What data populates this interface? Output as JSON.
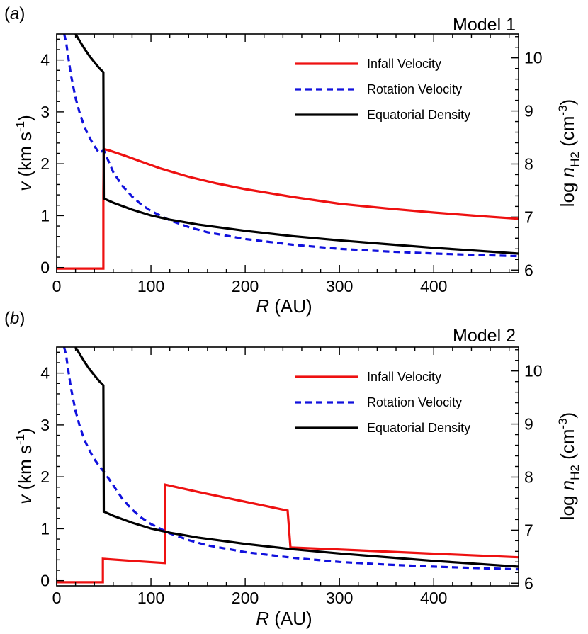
{
  "figure": {
    "x_label": {
      "symbol": "R",
      "unit": "(AU)"
    },
    "y_left_label": {
      "symbol": "v",
      "unit_open": "(km s",
      "unit_exp": "-1",
      "unit_close": ")"
    },
    "y_right_label": {
      "prefix": "log ",
      "symbol": "n",
      "subscript": "H2",
      "unit_open": "(cm",
      "unit_exp": "-3",
      "unit_close": ")"
    }
  },
  "chart_data": [
    {
      "type": "line",
      "panel_label": "a",
      "title": "Model 1",
      "xlabel": "R (AU)",
      "ylabel": "v (km s-1)",
      "ylabel_right": "log nH2 (cm-3)",
      "xlim": [
        0,
        490
      ],
      "ylim": [
        -0.1,
        4.5
      ],
      "ylim_right": [
        5.95,
        10.45
      ],
      "x_ticks": [
        0,
        100,
        200,
        300,
        400
      ],
      "y_ticks": [
        0,
        1,
        2,
        3,
        4
      ],
      "y_ticks_right": [
        6,
        7,
        8,
        9,
        10
      ],
      "legend": [
        "Infall Velocity",
        "Rotation Velocity",
        "Equatorial Density"
      ],
      "series": [
        {
          "name": "Infall Velocity",
          "axis": "left",
          "color": "#ee1111",
          "style": "solid",
          "x": [
            0,
            49.5,
            49.5,
            50,
            55,
            70,
            90,
            110,
            140,
            170,
            200,
            250,
            300,
            350,
            400,
            450,
            490
          ],
          "y": [
            -0.02,
            -0.02,
            1.45,
            2.28,
            2.26,
            2.17,
            2.04,
            1.91,
            1.75,
            1.62,
            1.51,
            1.36,
            1.23,
            1.14,
            1.06,
            0.99,
            0.94
          ]
        },
        {
          "name": "Rotation Velocity",
          "axis": "left",
          "color": "#1111dd",
          "style": "dashed",
          "x": [
            8,
            10,
            15,
            20,
            25,
            30,
            35,
            40,
            45,
            50,
            60,
            70,
            80,
            90,
            100,
            120,
            140,
            160,
            200,
            250,
            300,
            350,
            400,
            450,
            490
          ],
          "y": [
            4.5,
            4.34,
            3.72,
            3.27,
            2.94,
            2.69,
            2.5,
            2.34,
            2.21,
            2.26,
            1.84,
            1.57,
            1.37,
            1.21,
            1.09,
            0.91,
            0.78,
            0.68,
            0.55,
            0.44,
            0.36,
            0.31,
            0.27,
            0.24,
            0.22
          ]
        },
        {
          "name": "Equatorial Density",
          "axis": "right",
          "color": "#000000",
          "style": "solid",
          "x": [
            20,
            25,
            30,
            35,
            40,
            45,
            49.5,
            50,
            60,
            80,
            100,
            120,
            150,
            200,
            250,
            300,
            350,
            400,
            450,
            490
          ],
          "y": [
            10.45,
            10.3,
            10.16,
            10.03,
            9.92,
            9.81,
            9.73,
            7.35,
            7.27,
            7.14,
            7.03,
            6.95,
            6.86,
            6.74,
            6.64,
            6.56,
            6.49,
            6.42,
            6.36,
            6.31
          ]
        }
      ]
    },
    {
      "type": "line",
      "panel_label": "b",
      "title": "Model 2",
      "xlabel": "R (AU)",
      "ylabel": "v (km s-1)",
      "ylabel_right": "log nH2 (cm-3)",
      "xlim": [
        0,
        490
      ],
      "ylim": [
        -0.1,
        4.5
      ],
      "ylim_right": [
        5.95,
        10.45
      ],
      "x_ticks": [
        0,
        100,
        200,
        300,
        400
      ],
      "y_ticks": [
        0,
        1,
        2,
        3,
        4
      ],
      "y_ticks_right": [
        6,
        7,
        8,
        9,
        10
      ],
      "legend": [
        "Infall Velocity",
        "Rotation Velocity",
        "Equatorial Density"
      ],
      "series": [
        {
          "name": "Infall Velocity",
          "axis": "left",
          "color": "#ee1111",
          "style": "solid",
          "x": [
            0,
            49,
            49,
            80,
            115,
            115,
            150,
            200,
            245,
            248,
            300,
            400,
            490
          ],
          "y": [
            -0.03,
            -0.03,
            0.42,
            0.38,
            0.34,
            1.85,
            1.71,
            1.52,
            1.35,
            0.64,
            0.6,
            0.52,
            0.45
          ]
        },
        {
          "name": "Rotation Velocity",
          "axis": "left",
          "color": "#1111dd",
          "style": "dashed",
          "x": [
            8,
            10,
            15,
            20,
            25,
            30,
            35,
            40,
            45,
            50,
            60,
            70,
            80,
            90,
            100,
            120,
            140,
            160,
            200,
            250,
            300,
            350,
            400,
            450,
            490
          ],
          "y": [
            4.5,
            4.34,
            3.72,
            3.27,
            2.94,
            2.69,
            2.5,
            2.34,
            2.21,
            2.1,
            1.84,
            1.57,
            1.37,
            1.21,
            1.09,
            0.91,
            0.78,
            0.68,
            0.55,
            0.44,
            0.36,
            0.31,
            0.27,
            0.24,
            0.22
          ]
        },
        {
          "name": "Equatorial Density",
          "axis": "right",
          "color": "#000000",
          "style": "solid",
          "x": [
            20,
            25,
            30,
            35,
            40,
            45,
            49.5,
            50,
            60,
            80,
            100,
            120,
            150,
            200,
            250,
            300,
            350,
            400,
            450,
            490
          ],
          "y": [
            10.45,
            10.3,
            10.16,
            10.03,
            9.92,
            9.81,
            9.73,
            7.35,
            7.27,
            7.14,
            7.03,
            6.95,
            6.86,
            6.74,
            6.64,
            6.56,
            6.49,
            6.42,
            6.36,
            6.31
          ]
        }
      ]
    }
  ]
}
